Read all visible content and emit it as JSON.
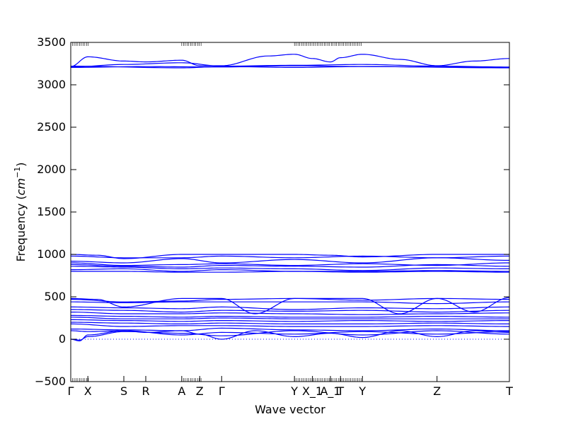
{
  "chart_data": {
    "type": "line",
    "title": "",
    "xlabel": "Wave vector",
    "ylabel": {
      "prefix": "Frequency (",
      "unit_base": "cm",
      "unit_exp": "−1",
      "suffix": ")"
    },
    "ylim": [
      -500,
      3500
    ],
    "yticks": [
      -500,
      0,
      500,
      1000,
      1500,
      2000,
      2500,
      3000,
      3500
    ],
    "xlim": [
      0,
      1
    ],
    "xticks": [
      {
        "pos": 0.0,
        "label": "Γ"
      },
      {
        "pos": 0.039,
        "label": "X"
      },
      {
        "pos": 0.121,
        "label": "S"
      },
      {
        "pos": 0.171,
        "label": "R"
      },
      {
        "pos": 0.253,
        "label": "A"
      },
      {
        "pos": 0.294,
        "label": "Z"
      },
      {
        "pos": 0.344,
        "label": "Γ"
      },
      {
        "pos": 0.51,
        "label": "Y"
      },
      {
        "pos": 0.551,
        "label": "X_1"
      },
      {
        "pos": 0.592,
        "label": "A_1"
      },
      {
        "pos": 0.615,
        "label": "T"
      },
      {
        "pos": 0.665,
        "label": "Y"
      },
      {
        "pos": 0.835,
        "label": "Z"
      },
      {
        "pos": 1.0,
        "label": "T"
      }
    ],
    "zero_line": 0,
    "line_color": "#0000ff",
    "zero_line_color": "#0000ff",
    "series": [
      {
        "x": [
          0,
          0.039,
          0.121,
          0.171,
          0.253,
          0.294,
          0.344,
          0.45,
          0.51,
          0.551,
          0.592,
          0.615,
          0.665,
          0.75,
          0.835,
          0.92,
          1.0
        ],
        "y": [
          3215,
          3330,
          3280,
          3270,
          3290,
          3225,
          3225,
          3340,
          3360,
          3310,
          3270,
          3320,
          3360,
          3300,
          3225,
          3280,
          3310
        ]
      },
      {
        "x": [
          0,
          0.121,
          0.253,
          0.344,
          0.51,
          0.665,
          0.835,
          1.0
        ],
        "y": [
          3210,
          3240,
          3260,
          3220,
          3230,
          3240,
          3220,
          3210
        ]
      },
      {
        "x": [
          0,
          0.171,
          0.344,
          0.51,
          0.665,
          0.835,
          1.0
        ],
        "y": [
          3205,
          3215,
          3210,
          3225,
          3215,
          3210,
          3205
        ]
      },
      {
        "x": [
          0,
          0.253,
          0.344,
          0.51,
          0.665,
          1.0
        ],
        "y": [
          3220,
          3200,
          3215,
          3205,
          3215,
          3200
        ]
      },
      {
        "x": [
          0,
          0.06,
          0.121,
          0.253,
          0.344,
          0.51,
          0.592,
          0.665,
          0.835,
          1.0
        ],
        "y": [
          1000,
          990,
          950,
          1000,
          1000,
          1000,
          990,
          970,
          1000,
          1000
        ]
      },
      {
        "x": [
          0,
          0.121,
          0.253,
          0.344,
          0.51,
          0.665,
          0.835,
          1.0
        ],
        "y": [
          980,
          960,
          960,
          980,
          960,
          980,
          960,
          980
        ]
      },
      {
        "x": [
          0,
          0.121,
          0.253,
          0.344,
          0.51,
          0.665,
          0.835,
          1.0
        ],
        "y": [
          920,
          900,
          950,
          900,
          940,
          900,
          960,
          930
        ]
      },
      {
        "x": [
          0,
          0.121,
          0.253,
          0.344,
          0.51,
          0.665,
          0.835,
          1.0
        ],
        "y": [
          900,
          870,
          880,
          890,
          870,
          890,
          870,
          900
        ]
      },
      {
        "x": [
          0,
          0.121,
          0.253,
          0.344,
          0.51,
          0.665,
          0.835,
          1.0
        ],
        "y": [
          880,
          860,
          850,
          870,
          860,
          850,
          880,
          860
        ]
      },
      {
        "x": [
          0,
          0.121,
          0.253,
          0.344,
          0.51,
          0.665,
          0.835,
          1.0
        ],
        "y": [
          860,
          850,
          830,
          840,
          830,
          810,
          840,
          830
        ]
      },
      {
        "x": [
          0,
          0.121,
          0.253,
          0.344,
          0.51,
          0.665,
          0.835,
          1.0
        ],
        "y": [
          820,
          830,
          800,
          820,
          800,
          800,
          810,
          800
        ]
      },
      {
        "x": [
          0,
          0.121,
          0.253,
          0.344,
          0.51,
          0.665,
          0.835,
          1.0
        ],
        "y": [
          800,
          800,
          790,
          790,
          800,
          790,
          800,
          790
        ]
      },
      {
        "x": [
          0,
          0.06,
          0.121,
          0.253,
          0.344,
          0.42,
          0.51,
          0.665,
          0.75,
          0.835,
          0.92,
          1.0
        ],
        "y": [
          480,
          470,
          380,
          480,
          480,
          300,
          480,
          480,
          300,
          480,
          320,
          490
        ]
      },
      {
        "x": [
          0,
          0.121,
          0.253,
          0.344,
          0.51,
          0.665,
          0.835,
          1.0
        ],
        "y": [
          470,
          440,
          450,
          470,
          480,
          460,
          480,
          470
        ]
      },
      {
        "x": [
          0,
          0.121,
          0.253,
          0.344,
          0.51,
          0.665,
          0.835,
          1.0
        ],
        "y": [
          440,
          430,
          440,
          440,
          440,
          440,
          420,
          440
        ]
      },
      {
        "x": [
          0,
          0.121,
          0.253,
          0.344,
          0.51,
          0.665,
          0.835,
          1.0
        ],
        "y": [
          380,
          370,
          360,
          380,
          350,
          370,
          360,
          380
        ]
      },
      {
        "x": [
          0,
          0.121,
          0.253,
          0.344,
          0.51,
          0.665,
          0.835,
          1.0
        ],
        "y": [
          350,
          340,
          320,
          340,
          330,
          340,
          320,
          340
        ]
      },
      {
        "x": [
          0,
          0.121,
          0.253,
          0.344,
          0.51,
          0.665,
          0.835,
          1.0
        ],
        "y": [
          320,
          300,
          300,
          310,
          300,
          290,
          300,
          310
        ]
      },
      {
        "x": [
          0,
          0.121,
          0.253,
          0.344,
          0.51,
          0.665,
          0.835,
          1.0
        ],
        "y": [
          280,
          270,
          260,
          270,
          260,
          260,
          270,
          260
        ]
      },
      {
        "x": [
          0,
          0.121,
          0.253,
          0.344,
          0.51,
          0.665,
          0.835,
          1.0
        ],
        "y": [
          260,
          240,
          240,
          250,
          240,
          240,
          240,
          240
        ]
      },
      {
        "x": [
          0,
          0.121,
          0.253,
          0.344,
          0.51,
          0.665,
          0.835,
          1.0
        ],
        "y": [
          230,
          220,
          210,
          220,
          210,
          220,
          210,
          220
        ]
      },
      {
        "x": [
          0,
          0.121,
          0.253,
          0.344,
          0.51,
          0.665,
          0.835,
          1.0
        ],
        "y": [
          200,
          190,
          180,
          190,
          180,
          180,
          190,
          180
        ]
      },
      {
        "x": [
          0,
          0.121,
          0.253,
          0.344,
          0.51,
          0.665,
          0.835,
          1.0
        ],
        "y": [
          180,
          150,
          160,
          160,
          150,
          150,
          160,
          150
        ]
      },
      {
        "x": [
          0,
          0.121,
          0.253,
          0.344,
          0.51,
          0.665,
          0.835,
          1.0
        ],
        "y": [
          120,
          110,
          100,
          130,
          110,
          100,
          120,
          100
        ]
      },
      {
        "x": [
          0,
          0.039,
          0.121,
          0.171,
          0.253,
          0.294,
          0.344,
          0.42,
          0.51,
          0.592,
          0.665,
          0.75,
          0.835,
          0.92,
          1.0
        ],
        "y": [
          100,
          90,
          100,
          80,
          100,
          60,
          0,
          100,
          30,
          70,
          20,
          100,
          30,
          100,
          80
        ]
      },
      {
        "x": [
          0,
          0.02,
          0.039,
          0.121,
          0.253,
          0.344,
          0.51,
          0.665,
          0.835,
          1.0
        ],
        "y": [
          0,
          -20,
          50,
          100,
          50,
          80,
          60,
          90,
          60,
          90
        ]
      },
      {
        "x": [
          0,
          0.02,
          0.039,
          0.121,
          0.253,
          0.344,
          0.51,
          0.665,
          0.835,
          1.0
        ],
        "y": [
          0,
          -10,
          30,
          90,
          70,
          40,
          100,
          50,
          100,
          60
        ]
      }
    ]
  }
}
